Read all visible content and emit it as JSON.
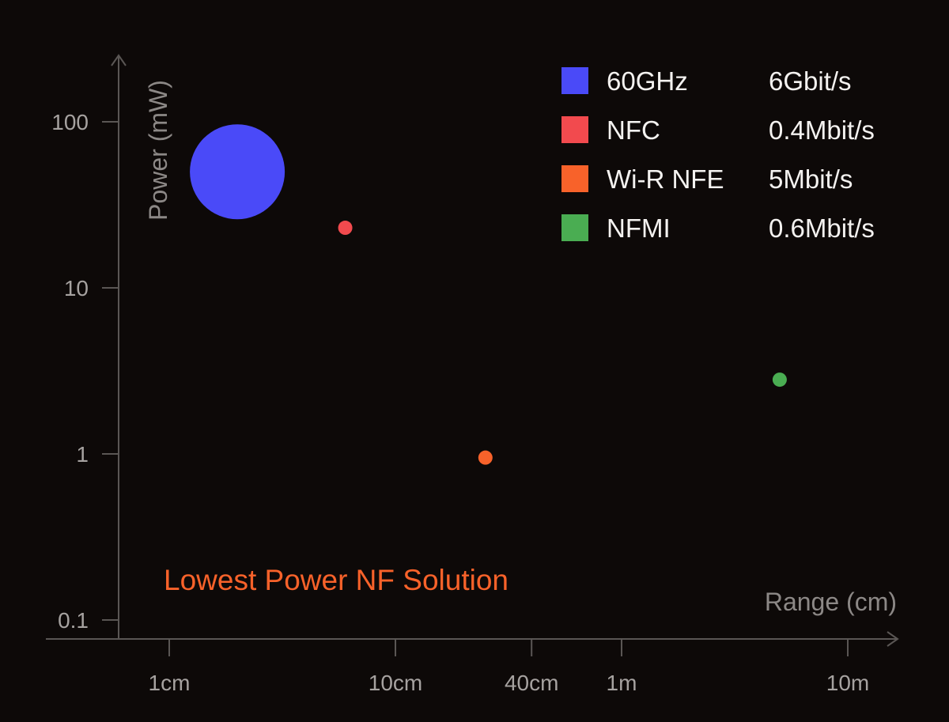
{
  "chart_data": {
    "type": "scatter",
    "title": "",
    "xlabel": "Range (cm)",
    "ylabel": "Power (mW)",
    "x_scale": "log",
    "y_scale": "log",
    "x_ticks": [
      {
        "label": "1cm",
        "value": 1
      },
      {
        "label": "10cm",
        "value": 10
      },
      {
        "label": "40cm",
        "value": 40
      },
      {
        "label": "1m",
        "value": 100
      },
      {
        "label": "10m",
        "value": 1000
      }
    ],
    "y_ticks": [
      {
        "label": "100",
        "value": 100
      },
      {
        "label": "10",
        "value": 10
      },
      {
        "label": "1",
        "value": 1
      },
      {
        "label": "0.1",
        "value": 0.1
      }
    ],
    "grid": false,
    "legend_position": "top-right",
    "series": [
      {
        "name": "60GHz",
        "data_rate": "6Gbit/s",
        "color": "#4a4af8",
        "x": 2,
        "y": 50,
        "bubble_mbits": 6000
      },
      {
        "name": "NFC",
        "data_rate": "0.4Mbit/s",
        "color": "#f24a4e",
        "x": 6,
        "y": 23,
        "bubble_mbits": 0.4
      },
      {
        "name": "Wi-R NFE",
        "data_rate": "5Mbit/s",
        "color": "#f8622a",
        "x": 25,
        "y": 0.95,
        "bubble_mbits": 5
      },
      {
        "name": "NFMI",
        "data_rate": "0.6Mbit/s",
        "color": "#4aad52",
        "x": 500,
        "y": 2.8,
        "bubble_mbits": 0.6
      }
    ],
    "annotation": {
      "text": "Lowest Power NF Solution",
      "color": "#f8622a"
    }
  }
}
